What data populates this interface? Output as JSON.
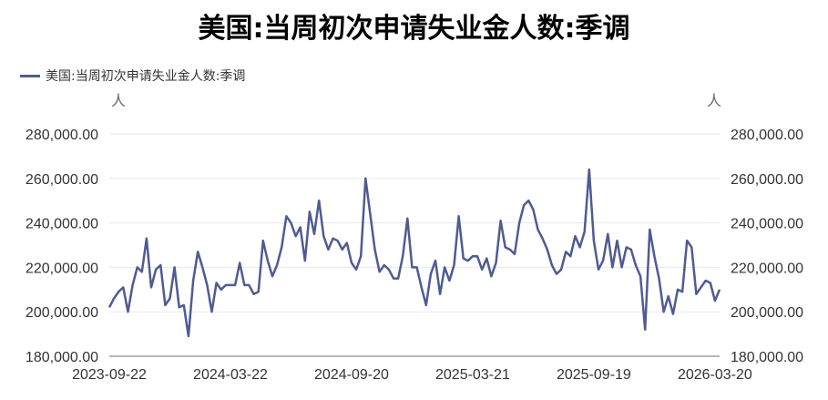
{
  "chart_data": {
    "type": "line",
    "title": "美国:当周初次申请失业金人数:季调",
    "legend": {
      "position": "top-left"
    },
    "series": [
      {
        "name": "美国:当周初次申请失业金人数:季调",
        "color": "#4f5b93",
        "x": [
          "2023-09-22",
          "2023-09-29",
          "2023-10-06",
          "2023-10-13",
          "2023-10-20",
          "2023-10-27",
          "2023-11-03",
          "2023-11-10",
          "2023-11-17",
          "2023-11-24",
          "2023-12-01",
          "2023-12-08",
          "2023-12-15",
          "2023-12-22",
          "2023-12-29",
          "2024-01-05",
          "2024-01-12",
          "2024-01-19",
          "2024-01-26",
          "2024-02-02",
          "2024-02-09",
          "2024-02-16",
          "2024-02-23",
          "2024-03-01",
          "2024-03-08",
          "2024-03-15",
          "2024-03-22",
          "2024-03-29",
          "2024-04-05",
          "2024-04-12",
          "2024-04-19",
          "2024-04-26",
          "2024-05-03",
          "2024-05-10",
          "2024-05-17",
          "2024-05-24",
          "2024-05-31",
          "2024-06-07",
          "2024-06-14",
          "2024-06-21",
          "2024-06-28",
          "2024-07-05",
          "2024-07-12",
          "2024-07-19",
          "2024-07-26",
          "2024-08-02",
          "2024-08-09",
          "2024-08-16",
          "2024-08-23",
          "2024-08-30",
          "2024-09-06",
          "2024-09-13",
          "2024-09-20",
          "2024-09-27",
          "2024-10-04",
          "2024-10-11",
          "2024-10-18",
          "2024-10-25",
          "2024-11-01",
          "2024-11-08",
          "2024-11-15",
          "2024-11-22",
          "2024-11-29",
          "2024-12-06",
          "2024-12-13",
          "2024-12-20",
          "2024-12-27",
          "2025-01-03",
          "2025-01-10",
          "2025-01-17",
          "2025-01-24",
          "2025-01-31",
          "2025-02-07",
          "2025-02-14",
          "2025-02-21",
          "2025-02-28",
          "2025-03-07",
          "2025-03-14",
          "2025-03-21",
          "2025-03-28",
          "2025-04-04",
          "2025-04-11",
          "2025-04-18",
          "2025-04-25",
          "2025-05-02",
          "2025-05-09",
          "2025-05-16",
          "2025-05-23",
          "2025-05-30",
          "2025-06-06",
          "2025-06-13",
          "2025-06-20",
          "2025-06-27",
          "2025-07-04",
          "2025-07-11",
          "2025-07-18",
          "2025-07-25",
          "2025-08-01",
          "2025-08-08",
          "2025-08-15",
          "2025-08-22",
          "2025-08-29",
          "2025-09-05",
          "2025-09-12",
          "2025-09-19",
          "2025-09-26",
          "2025-10-03",
          "2025-10-10",
          "2025-10-17",
          "2025-10-24",
          "2025-10-31",
          "2025-11-07",
          "2025-11-14",
          "2025-11-21",
          "2025-11-28",
          "2025-12-05",
          "2025-12-12",
          "2025-12-19",
          "2025-12-26",
          "2026-01-02",
          "2026-01-09",
          "2026-01-16",
          "2026-01-23",
          "2026-01-30",
          "2026-02-06",
          "2026-02-13",
          "2026-02-20",
          "2026-02-27",
          "2026-03-06",
          "2026-03-13",
          "2026-03-20",
          "2026-03-27"
        ],
        "values": [
          202000,
          206000,
          209000,
          211000,
          200000,
          212000,
          220000,
          218000,
          233000,
          211000,
          219000,
          221000,
          203000,
          206000,
          220000,
          202000,
          203000,
          189000,
          214000,
          227000,
          220000,
          212000,
          200000,
          213000,
          210000,
          212000,
          212000,
          212000,
          222000,
          212000,
          212000,
          208000,
          209000,
          232000,
          223000,
          216000,
          221000,
          229000,
          243000,
          240000,
          234000,
          238000,
          223000,
          245000,
          235000,
          250000,
          234000,
          228000,
          233000,
          232000,
          228000,
          231000,
          222000,
          219000,
          225000,
          260000,
          244000,
          228000,
          218000,
          221000,
          219000,
          215000,
          215000,
          225000,
          242000,
          220000,
          220000,
          211000,
          203000,
          217000,
          223000,
          208000,
          220000,
          214000,
          221000,
          243000,
          224000,
          223000,
          225000,
          225000,
          219000,
          224000,
          216000,
          222000,
          241000,
          229000,
          228000,
          226000,
          240000,
          248000,
          250000,
          246000,
          237000,
          233000,
          228000,
          221000,
          217000,
          219000,
          227000,
          225000,
          234000,
          229000,
          236000,
          264000,
          232000,
          219000,
          223000,
          235000,
          220000,
          232000,
          220000,
          229000,
          228000,
          221000,
          216000,
          192000,
          237000,
          225000,
          215000,
          200000,
          207000,
          199000,
          210000,
          209000,
          232000,
          229000,
          208000,
          211000,
          214000,
          213000,
          205000,
          210000
        ]
      }
    ],
    "x_ticks": [
      "2023-09-22",
      "2024-03-22",
      "2024-09-20",
      "2025-03-21",
      "2025-09-19",
      "2026-03-20"
    ],
    "y_ticks": [
      "180,000.00",
      "200,000.00",
      "220,000.00",
      "240,000.00",
      "260,000.00",
      "280,000.00"
    ],
    "ylim": [
      180000,
      280000
    ],
    "ylabel_left": "人",
    "ylabel_right": "人",
    "grid": true
  }
}
